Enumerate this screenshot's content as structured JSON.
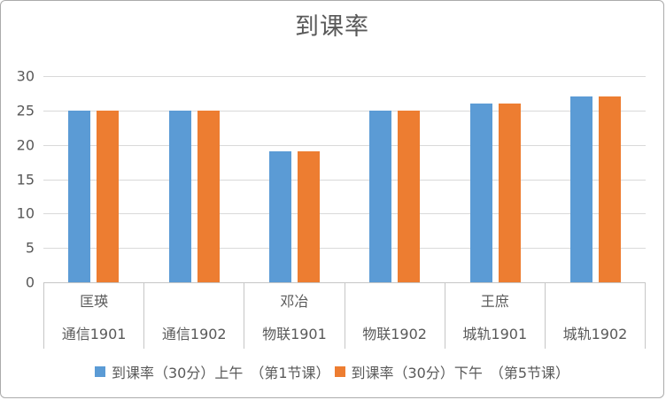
{
  "chart_data": {
    "type": "bar",
    "title": "到课率",
    "categories": [
      {
        "teacher": "匡瑛",
        "class": "通信1901"
      },
      {
        "teacher": "",
        "class": "通信1902"
      },
      {
        "teacher": "邓冶",
        "class": "物联1901"
      },
      {
        "teacher": "",
        "class": "物联1902"
      },
      {
        "teacher": "王庶",
        "class": "城轨1901"
      },
      {
        "teacher": "",
        "class": "城轨1902"
      }
    ],
    "series": [
      {
        "name": "到课率（30分）上午　（第1节课）",
        "color": "#5B9BD5",
        "values": [
          25,
          25,
          19,
          25,
          26,
          27
        ]
      },
      {
        "name": "到课率（30分）下午　（第5节课）",
        "color": "#ED7D31",
        "values": [
          25,
          25,
          19,
          25,
          26,
          27
        ]
      }
    ],
    "xlabel": "",
    "ylabel": "",
    "ylim": [
      0,
      30
    ],
    "ytick_step": 5,
    "yticks": [
      0,
      5,
      10,
      15,
      20,
      25,
      30
    ],
    "grid": "horizontal",
    "legend_position": "bottom"
  },
  "style_colors": {
    "text": "#595959",
    "gridline": "#d9d9d9",
    "axis_line": "#c6c6c6",
    "border": "#ababab",
    "background": "#ffffff"
  }
}
